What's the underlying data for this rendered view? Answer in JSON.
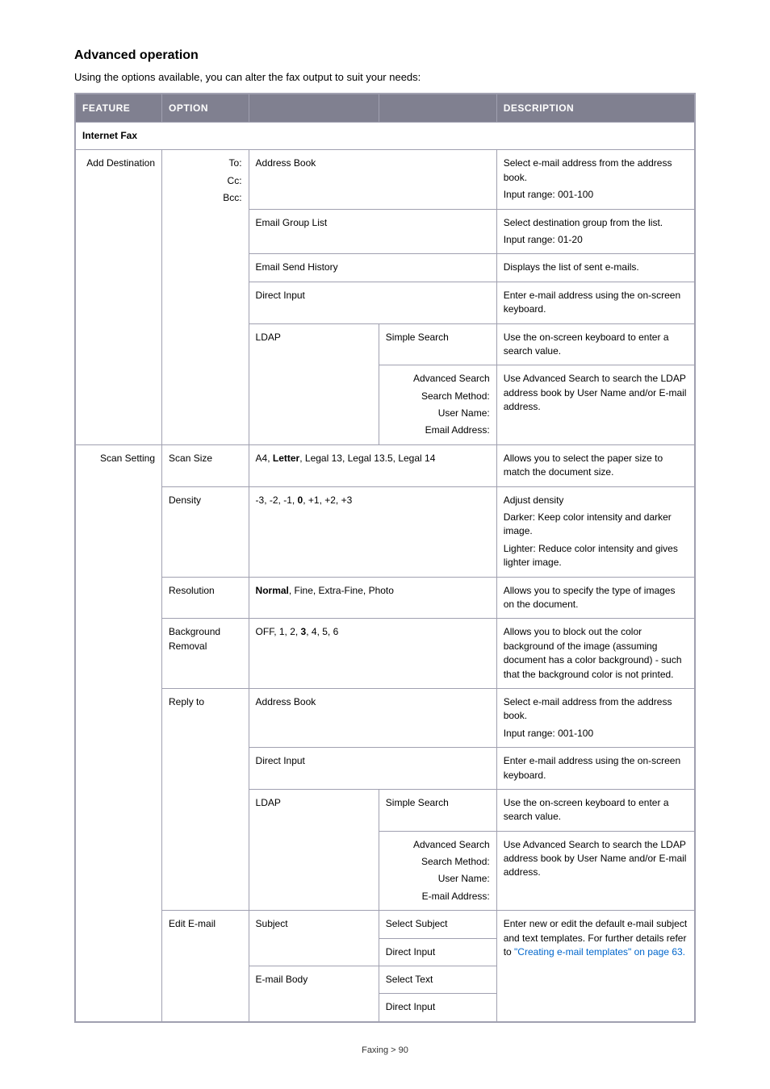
{
  "heading": "Advanced operation",
  "intro": "Using the options available, you can alter the fax output to suit your needs:",
  "columns": {
    "feature": "FEATURE",
    "option": "OPTION",
    "blank1": "",
    "blank2": "",
    "description": "DESCRIPTION"
  },
  "section_header": "Internet Fax",
  "col_widths": [
    "14%",
    "14%",
    "21%",
    "19%",
    "32%"
  ],
  "add_dest": {
    "feature": "Add Destination",
    "option_lines": [
      "To:",
      "Cc:",
      "Bcc:"
    ],
    "rows": [
      {
        "col3": "Address Book",
        "desc": [
          "Select e-mail address from the address book.",
          "Input range: 001-100"
        ]
      },
      {
        "col3": "Email Group List",
        "desc": [
          "Select destination group from the list.",
          "Input range: 01-20"
        ]
      },
      {
        "col3": "Email Send History",
        "desc": [
          "Displays the list of sent e-mails."
        ]
      },
      {
        "col3": "Direct Input",
        "desc": [
          "Enter e-mail address using the on-screen keyboard."
        ]
      }
    ],
    "ldap": {
      "label": "LDAP",
      "simple": "Simple Search",
      "simple_desc": "Use the on-screen keyboard to enter a search value.",
      "adv_lines": [
        "Advanced Search",
        "Search Method:",
        "User Name:",
        "Email Address:"
      ],
      "adv_desc": "Use Advanced Search to search the LDAP address book by User Name and/or E-mail address."
    }
  },
  "scan": {
    "feature": "Scan Setting",
    "rows": [
      {
        "option": "Scan Size",
        "value_html": "A4, <b>Letter</b>, Legal 13, Legal 13.5, Legal 14",
        "desc": [
          "Allows you to select the paper size to match the document size."
        ]
      },
      {
        "option": "Density",
        "value_html": "-3, -2, -1, <b>0</b>, +1, +2, +3",
        "desc": [
          "Adjust density",
          "Darker: Keep color intensity and darker image.",
          "Lighter: Reduce color intensity and gives lighter image."
        ]
      },
      {
        "option": "Resolution",
        "value_html": "<b>Normal</b>, Fine, Extra-Fine, Photo",
        "desc": [
          "Allows you to specify the type of images on the document."
        ]
      },
      {
        "option": "Background Removal",
        "value_html": "OFF, 1, 2, <b>3</b>, 4, 5, 6",
        "desc": [
          "Allows you to block out the color background of the image (assuming document has a color background) - such that the background color is not printed."
        ]
      }
    ],
    "reply": {
      "option": "Reply to",
      "addr_book": "Address Book",
      "addr_desc": [
        "Select e-mail address from the address book.",
        "Input range: 001-100"
      ],
      "direct": "Direct Input",
      "direct_desc": "Enter e-mail address using the on-screen keyboard.",
      "ldap": {
        "label": "LDAP",
        "simple": "Simple Search",
        "simple_desc": "Use the on-screen keyboard to enter a search value.",
        "adv_lines": [
          "Advanced Search",
          "Search Method:",
          "User Name:",
          "E-mail Address:"
        ],
        "adv_desc": "Use Advanced Search to search the LDAP address book by User Name and/or E-mail address."
      }
    },
    "edit": {
      "option": "Edit E-mail",
      "subject_label": "Subject",
      "select_subject": "Select Subject",
      "subject_direct": "Direct Input",
      "body_label": "E-mail Body",
      "select_text": "Select Text",
      "body_direct": "Direct Input",
      "desc_prefix": "Enter new or edit the default e-mail subject and text templates. For further details refer to ",
      "desc_link": "\"Creating e-mail templates\" on page 63.",
      "desc_suffix": ""
    }
  },
  "footer": "Faxing > 90"
}
